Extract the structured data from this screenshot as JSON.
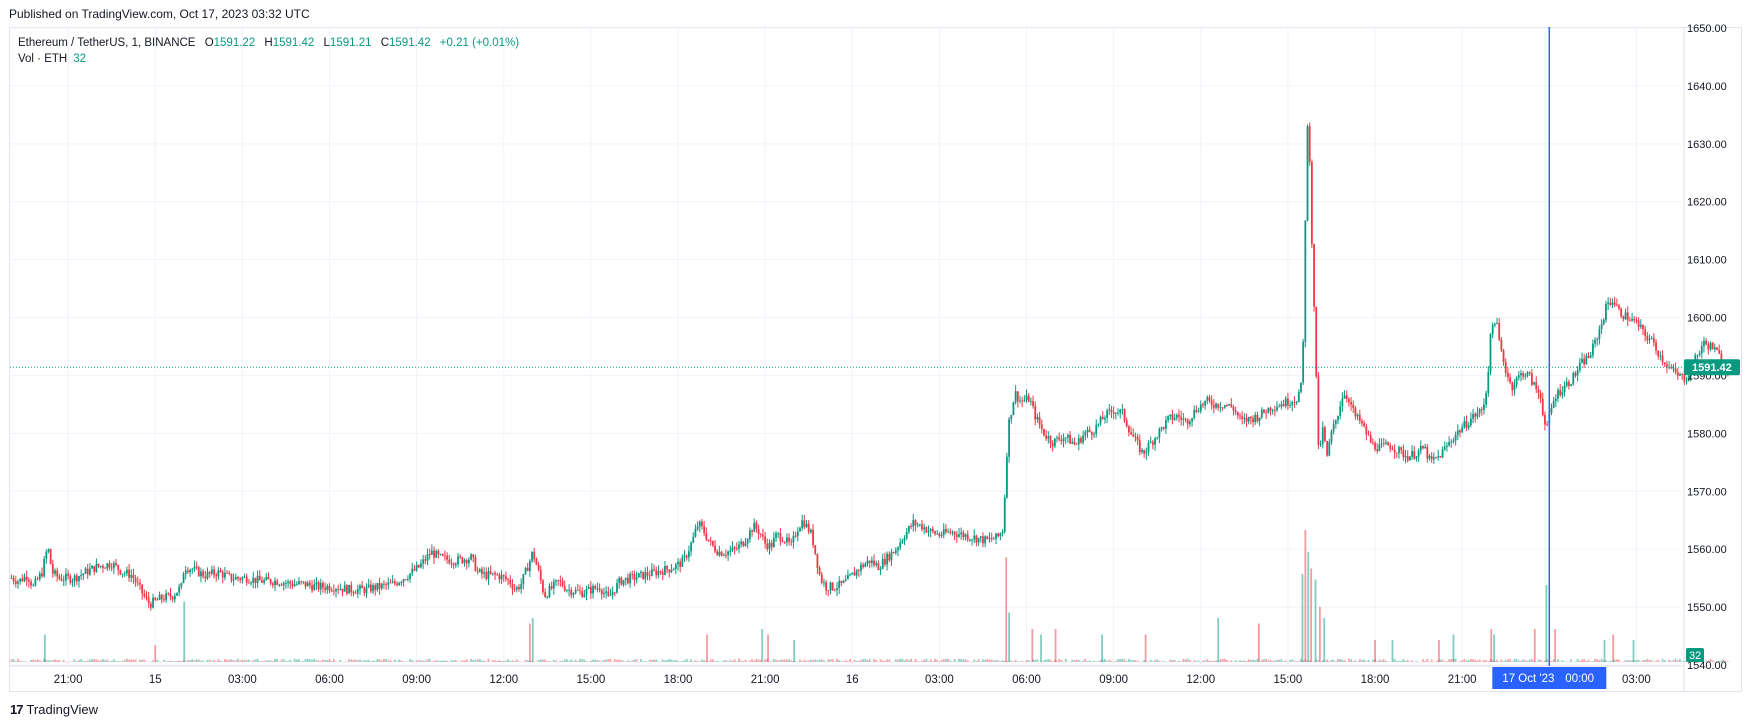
{
  "header": {
    "published": "Published on TradingView.com, Oct 17, 2023 03:32 UTC"
  },
  "legend": {
    "symbol": "Ethereum / TetherUS, 1, BINANCE",
    "open_label": "O",
    "open": "1591.22",
    "high_label": "H",
    "high": "1591.42",
    "low_label": "L",
    "low": "1591.21",
    "close_label": "C",
    "close": "1591.42",
    "change": "+0.21 (+0.01%)",
    "vol_label": "Vol · ETH",
    "vol_value": "32"
  },
  "footer": {
    "brand_logo": "17",
    "brand_name": "TradingView"
  },
  "colors": {
    "up": "#089981",
    "down": "#f23645",
    "cursor": "#2962ff",
    "grid": "#f0f3fa",
    "text": "#131722"
  },
  "chart_data": {
    "type": "candlestick",
    "title": "Ethereum / TetherUS, 1, BINANCE",
    "price_axis": {
      "min": 1540,
      "max": 1650,
      "ticks": [
        "1650.00",
        "1640.00",
        "1630.00",
        "1620.00",
        "1610.00",
        "1600.00",
        "1590.00",
        "1580.00",
        "1570.00",
        "1560.00",
        "1550.00",
        "1540.00"
      ]
    },
    "time_axis": {
      "ticks": [
        {
          "label": "21:00",
          "h": 21
        },
        {
          "label": "15",
          "h": 24
        },
        {
          "label": "03:00",
          "h": 27
        },
        {
          "label": "06:00",
          "h": 30
        },
        {
          "label": "09:00",
          "h": 33
        },
        {
          "label": "12:00",
          "h": 36
        },
        {
          "label": "15:00",
          "h": 39
        },
        {
          "label": "18:00",
          "h": 42
        },
        {
          "label": "21:00",
          "h": 45
        },
        {
          "label": "16",
          "h": 48
        },
        {
          "label": "03:00",
          "h": 51
        },
        {
          "label": "06:00",
          "h": 54
        },
        {
          "label": "09:00",
          "h": 57
        },
        {
          "label": "12:00",
          "h": 60
        },
        {
          "label": "15:00",
          "h": 63
        },
        {
          "label": "18:00",
          "h": 66
        },
        {
          "label": "21:00",
          "h": 69
        },
        {
          "label": "03:00",
          "h": 75
        }
      ],
      "range_hours": [
        19.0,
        76.5
      ]
    },
    "price_path": [
      [
        19.05,
        1555
      ],
      [
        19.3,
        1554.5
      ],
      [
        19.6,
        1555.5
      ],
      [
        19.8,
        1553.5
      ],
      [
        20.1,
        1556
      ],
      [
        20.3,
        1560.5
      ],
      [
        20.45,
        1556
      ],
      [
        20.7,
        1555
      ],
      [
        21.2,
        1555
      ],
      [
        21.6,
        1556
      ],
      [
        22.0,
        1557
      ],
      [
        22.5,
        1557.5
      ],
      [
        22.9,
        1556
      ],
      [
        23.2,
        1555.5
      ],
      [
        23.6,
        1552
      ],
      [
        23.8,
        1550.5
      ],
      [
        24.2,
        1551.5
      ],
      [
        24.6,
        1552
      ],
      [
        24.9,
        1553.5
      ],
      [
        25.0,
        1557
      ],
      [
        25.3,
        1556.5
      ],
      [
        25.7,
        1555.5
      ],
      [
        26.2,
        1556
      ],
      [
        26.6,
        1555
      ],
      [
        27.2,
        1555
      ],
      [
        27.6,
        1554.5
      ],
      [
        28.2,
        1554.5
      ],
      [
        28.7,
        1554
      ],
      [
        29.1,
        1554
      ],
      [
        29.6,
        1553.5
      ],
      [
        30.2,
        1553.5
      ],
      [
        30.7,
        1553
      ],
      [
        31.2,
        1553
      ],
      [
        31.7,
        1553.5
      ],
      [
        32.2,
        1554
      ],
      [
        32.7,
        1555.5
      ],
      [
        33.1,
        1557
      ],
      [
        33.5,
        1559.5
      ],
      [
        33.8,
        1558.5
      ],
      [
        34.3,
        1558
      ],
      [
        34.9,
        1558.5
      ],
      [
        35.1,
        1556
      ],
      [
        35.4,
        1555.5
      ],
      [
        35.8,
        1555.5
      ],
      [
        36.2,
        1554.5
      ],
      [
        36.4,
        1553
      ],
      [
        36.6,
        1554
      ],
      [
        36.9,
        1558
      ],
      [
        37.0,
        1559.5
      ],
      [
        37.2,
        1556
      ],
      [
        37.4,
        1552
      ],
      [
        37.6,
        1553
      ],
      [
        37.9,
        1554.5
      ],
      [
        38.2,
        1553
      ],
      [
        38.7,
        1552.5
      ],
      [
        39.3,
        1553.5
      ],
      [
        39.6,
        1551.5
      ],
      [
        40.0,
        1554.5
      ],
      [
        40.4,
        1555
      ],
      [
        40.8,
        1555.5
      ],
      [
        41.2,
        1556
      ],
      [
        41.6,
        1556.5
      ],
      [
        41.9,
        1557
      ],
      [
        42.2,
        1558
      ],
      [
        42.5,
        1561.5
      ],
      [
        42.7,
        1564.5
      ],
      [
        42.9,
        1563
      ],
      [
        43.1,
        1561
      ],
      [
        43.4,
        1559.5
      ],
      [
        43.7,
        1559.5
      ],
      [
        44.0,
        1560
      ],
      [
        44.3,
        1561.5
      ],
      [
        44.6,
        1564
      ],
      [
        44.8,
        1563
      ],
      [
        45.0,
        1561
      ],
      [
        45.2,
        1560.5
      ],
      [
        45.4,
        1562.5
      ],
      [
        45.6,
        1562
      ],
      [
        45.9,
        1560.5
      ],
      [
        46.1,
        1563.5
      ],
      [
        46.3,
        1565
      ],
      [
        46.6,
        1562.5
      ],
      [
        46.9,
        1555
      ],
      [
        47.1,
        1553.5
      ],
      [
        47.4,
        1553.5
      ],
      [
        47.7,
        1554
      ],
      [
        48.0,
        1555.5
      ],
      [
        48.3,
        1557
      ],
      [
        48.6,
        1558
      ],
      [
        48.9,
        1557
      ],
      [
        49.2,
        1558.5
      ],
      [
        49.5,
        1560
      ],
      [
        49.8,
        1562.5
      ],
      [
        50.1,
        1564.5
      ],
      [
        50.4,
        1564
      ],
      [
        50.7,
        1563
      ],
      [
        51.0,
        1562.5
      ],
      [
        51.4,
        1563
      ],
      [
        51.8,
        1562.5
      ],
      [
        52.2,
        1562
      ],
      [
        52.6,
        1561.5
      ],
      [
        53.0,
        1562
      ],
      [
        53.2,
        1563.5
      ],
      [
        53.3,
        1575
      ],
      [
        53.4,
        1582
      ],
      [
        53.6,
        1587
      ],
      [
        53.8,
        1585.5
      ],
      [
        54.1,
        1586
      ],
      [
        54.3,
        1583
      ],
      [
        54.6,
        1580
      ],
      [
        54.9,
        1578.5
      ],
      [
        55.3,
        1579.5
      ],
      [
        55.7,
        1578
      ],
      [
        56.0,
        1580
      ],
      [
        56.3,
        1580.5
      ],
      [
        56.7,
        1583
      ],
      [
        57.0,
        1584
      ],
      [
        57.3,
        1583.5
      ],
      [
        57.6,
        1580
      ],
      [
        58.0,
        1576.5
      ],
      [
        58.3,
        1578.5
      ],
      [
        58.6,
        1580.5
      ],
      [
        58.9,
        1582.5
      ],
      [
        59.2,
        1583
      ],
      [
        59.5,
        1582
      ],
      [
        59.9,
        1584.5
      ],
      [
        60.2,
        1585.5
      ],
      [
        60.5,
        1585
      ],
      [
        60.8,
        1585
      ],
      [
        61.1,
        1584.5
      ],
      [
        61.4,
        1582
      ],
      [
        61.7,
        1582.5
      ],
      [
        62.0,
        1583
      ],
      [
        62.4,
        1584.5
      ],
      [
        62.7,
        1585
      ],
      [
        63.0,
        1585.5
      ],
      [
        63.3,
        1586
      ],
      [
        63.45,
        1588
      ],
      [
        63.55,
        1598
      ],
      [
        63.62,
        1625
      ],
      [
        63.7,
        1636
      ],
      [
        63.76,
        1626
      ],
      [
        63.82,
        1614
      ],
      [
        63.88,
        1604
      ],
      [
        63.94,
        1596
      ],
      [
        64.0,
        1586
      ],
      [
        64.08,
        1572
      ],
      [
        64.15,
        1582
      ],
      [
        64.22,
        1580
      ],
      [
        64.35,
        1576
      ],
      [
        64.5,
        1580
      ],
      [
        64.7,
        1583
      ],
      [
        64.9,
        1587
      ],
      [
        65.1,
        1586
      ],
      [
        65.3,
        1583
      ],
      [
        65.5,
        1582
      ],
      [
        65.7,
        1580
      ],
      [
        65.9,
        1578
      ],
      [
        66.2,
        1577.5
      ],
      [
        66.5,
        1578
      ],
      [
        66.8,
        1577
      ],
      [
        67.1,
        1576
      ],
      [
        67.4,
        1576.5
      ],
      [
        67.7,
        1577.5
      ],
      [
        67.9,
        1575
      ],
      [
        68.2,
        1576
      ],
      [
        68.5,
        1578
      ],
      [
        68.8,
        1580
      ],
      [
        69.1,
        1581.5
      ],
      [
        69.4,
        1583
      ],
      [
        69.7,
        1584
      ],
      [
        69.85,
        1588
      ],
      [
        70.0,
        1598
      ],
      [
        70.15,
        1600
      ],
      [
        70.3,
        1595
      ],
      [
        70.5,
        1591
      ],
      [
        70.7,
        1588
      ],
      [
        70.9,
        1589.5
      ],
      [
        71.1,
        1590.5
      ],
      [
        71.3,
        1590
      ],
      [
        71.5,
        1588
      ],
      [
        71.7,
        1586.5
      ],
      [
        71.8,
        1583
      ],
      [
        71.9,
        1580
      ],
      [
        72.0,
        1583
      ],
      [
        72.2,
        1586.5
      ],
      [
        72.5,
        1588
      ],
      [
        72.8,
        1589.5
      ],
      [
        73.1,
        1592
      ],
      [
        73.4,
        1593.5
      ],
      [
        73.6,
        1596
      ],
      [
        73.8,
        1599
      ],
      [
        74.0,
        1602.5
      ],
      [
        74.2,
        1603
      ],
      [
        74.4,
        1601
      ],
      [
        74.7,
        1600
      ],
      [
        75.0,
        1599
      ],
      [
        75.3,
        1597
      ],
      [
        75.6,
        1595.5
      ],
      [
        75.8,
        1593.5
      ],
      [
        76.1,
        1591.5
      ],
      [
        76.4,
        1590
      ],
      [
        76.7,
        1589.5
      ],
      [
        77.0,
        1592.5
      ],
      [
        77.3,
        1595.5
      ],
      [
        77.6,
        1595
      ],
      [
        77.9,
        1593
      ],
      [
        78.2,
        1591.4
      ]
    ],
    "volume_spikes": [
      [
        20.2,
        0.25
      ],
      [
        24.0,
        0.15
      ],
      [
        25.0,
        0.55
      ],
      [
        36.9,
        0.35
      ],
      [
        37.0,
        0.4
      ],
      [
        43.0,
        0.25
      ],
      [
        44.9,
        0.3
      ],
      [
        45.1,
        0.25
      ],
      [
        46.0,
        0.2
      ],
      [
        53.3,
        0.95
      ],
      [
        53.4,
        0.45
      ],
      [
        54.2,
        0.3
      ],
      [
        54.5,
        0.25
      ],
      [
        55.0,
        0.3
      ],
      [
        56.6,
        0.25
      ],
      [
        58.1,
        0.25
      ],
      [
        60.6,
        0.4
      ],
      [
        62.0,
        0.35
      ],
      [
        63.5,
        0.8
      ],
      [
        63.6,
        1.2
      ],
      [
        63.7,
        1.0
      ],
      [
        63.8,
        0.85
      ],
      [
        63.95,
        0.75
      ],
      [
        64.1,
        0.5
      ],
      [
        64.25,
        0.4
      ],
      [
        66.0,
        0.2
      ],
      [
        66.6,
        0.2
      ],
      [
        68.2,
        0.2
      ],
      [
        68.7,
        0.25
      ],
      [
        70.0,
        0.3
      ],
      [
        70.1,
        0.25
      ],
      [
        71.5,
        0.3
      ],
      [
        71.9,
        0.7
      ],
      [
        72.2,
        0.3
      ],
      [
        73.9,
        0.2
      ],
      [
        74.2,
        0.25
      ],
      [
        74.9,
        0.2
      ]
    ],
    "last_price": 1591.42,
    "last_volume": 32,
    "cursor": {
      "h": 72.0,
      "label": "17 Oct '23",
      "time": "00:00"
    }
  }
}
